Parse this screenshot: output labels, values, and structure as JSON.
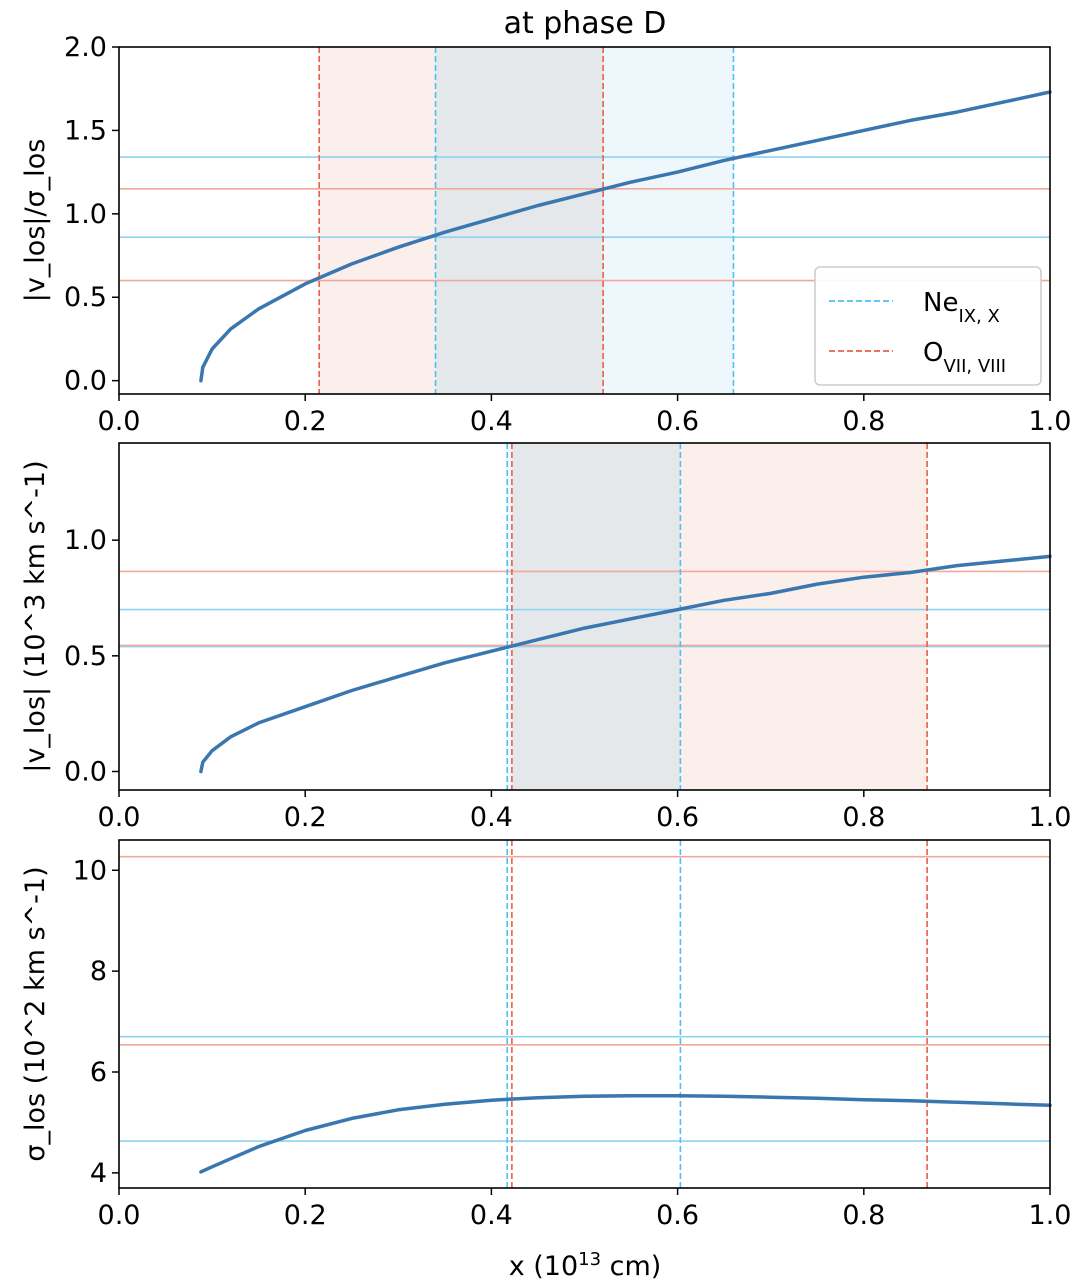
{
  "title": "at phase D",
  "xlabel": "x (10^13 cm)",
  "colors": {
    "curve": "#3a76af",
    "ne": "#4cc0f0",
    "o": "#e8604a",
    "ne_line": "#8fd3f4",
    "o_line": "#f2a89a",
    "ne_fill": "#d9eef8",
    "o_fill": "#f8e2dc",
    "overlap_fill": "#e4e6ea"
  },
  "legend": {
    "ne": {
      "base": "Ne",
      "sub": "IX, X"
    },
    "o": {
      "base": "O",
      "sub": "VII, VIII"
    }
  },
  "chart_data": [
    {
      "type": "line",
      "id": "panel1",
      "ylabel": {
        "text": "|v_los|/σ_los"
      },
      "xlim": [
        0.0,
        1.0
      ],
      "ylim": [
        -0.08,
        2.0
      ],
      "xticks": [
        "0.0",
        "0.2",
        "0.4",
        "0.6",
        "0.8",
        "1.0"
      ],
      "yticks": [
        "0.0",
        "0.5",
        "1.0",
        "1.5",
        "2.0"
      ],
      "xtick_values": [
        0.0,
        0.2,
        0.4,
        0.6,
        0.8,
        1.0
      ],
      "ytick_values": [
        0.0,
        0.5,
        1.0,
        1.5,
        2.0
      ],
      "curve": {
        "x0": 0.088,
        "x": [
          0.088,
          0.09,
          0.1,
          0.12,
          0.15,
          0.2,
          0.25,
          0.3,
          0.35,
          0.4,
          0.45,
          0.5,
          0.55,
          0.6,
          0.65,
          0.7,
          0.75,
          0.8,
          0.85,
          0.9,
          0.95,
          1.0
        ],
        "y": [
          0.0,
          0.08,
          0.19,
          0.31,
          0.43,
          0.58,
          0.7,
          0.8,
          0.89,
          0.97,
          1.05,
          1.12,
          1.19,
          1.25,
          1.32,
          1.38,
          1.44,
          1.5,
          1.56,
          1.61,
          1.67,
          1.73
        ]
      },
      "hlines": {
        "ne": [
          1.34,
          0.86
        ],
        "o": [
          1.15,
          0.6
        ]
      },
      "vlines": {
        "ne": [
          0.34,
          0.66
        ],
        "o": [
          0.215,
          0.52
        ]
      },
      "show_legend": true
    },
    {
      "type": "line",
      "id": "panel2",
      "ylabel": {
        "text": "|v_los|  (10^3 km s^-1)"
      },
      "xlim": [
        0.0,
        1.0
      ],
      "ylim": [
        -0.08,
        1.42
      ],
      "xticks": [
        "0.0",
        "0.2",
        "0.4",
        "0.6",
        "0.8",
        "1.0"
      ],
      "yticks": [
        "0.0",
        "0.5",
        "1.0"
      ],
      "xtick_values": [
        0.0,
        0.2,
        0.4,
        0.6,
        0.8,
        1.0
      ],
      "ytick_values": [
        0.0,
        0.5,
        1.0
      ],
      "curve": {
        "x": [
          0.088,
          0.09,
          0.1,
          0.12,
          0.15,
          0.2,
          0.25,
          0.3,
          0.35,
          0.4,
          0.45,
          0.5,
          0.55,
          0.6,
          0.65,
          0.7,
          0.75,
          0.8,
          0.85,
          0.9,
          0.95,
          1.0
        ],
        "y": [
          0.0,
          0.04,
          0.09,
          0.15,
          0.21,
          0.28,
          0.35,
          0.41,
          0.47,
          0.52,
          0.57,
          0.62,
          0.66,
          0.7,
          0.74,
          0.77,
          0.81,
          0.84,
          0.86,
          0.89,
          0.91,
          0.93
        ]
      },
      "hlines": {
        "ne": [
          0.7,
          0.54
        ],
        "o": [
          0.865,
          0.545
        ]
      },
      "vlines": {
        "ne": [
          0.417,
          0.603
        ],
        "o": [
          0.422,
          0.868
        ]
      },
      "show_legend": false
    },
    {
      "type": "line",
      "id": "panel3",
      "ylabel": {
        "text": "σ_los  (10^2 km s^-1)"
      },
      "xlim": [
        0.0,
        1.0
      ],
      "ylim": [
        3.7,
        10.6
      ],
      "xticks": [
        "0.0",
        "0.2",
        "0.4",
        "0.6",
        "0.8",
        "1.0"
      ],
      "yticks": [
        "4",
        "6",
        "8",
        "10"
      ],
      "xtick_values": [
        0.0,
        0.2,
        0.4,
        0.6,
        0.8,
        1.0
      ],
      "ytick_values": [
        4,
        6,
        8,
        10
      ],
      "curve": {
        "x": [
          0.088,
          0.1,
          0.12,
          0.15,
          0.2,
          0.25,
          0.3,
          0.35,
          0.4,
          0.45,
          0.5,
          0.55,
          0.6,
          0.65,
          0.7,
          0.75,
          0.8,
          0.85,
          0.9,
          0.95,
          1.0
        ],
        "y": [
          4.02,
          4.12,
          4.28,
          4.52,
          4.84,
          5.08,
          5.25,
          5.36,
          5.44,
          5.49,
          5.52,
          5.53,
          5.53,
          5.52,
          5.5,
          5.48,
          5.45,
          5.43,
          5.4,
          5.37,
          5.34
        ]
      },
      "hlines": {
        "ne": [
          6.7,
          4.63
        ],
        "o": [
          10.27,
          6.54
        ]
      },
      "vlines": {
        "ne": [
          0.417,
          0.603
        ],
        "o": [
          0.422,
          0.868
        ]
      },
      "show_legend": false
    }
  ]
}
